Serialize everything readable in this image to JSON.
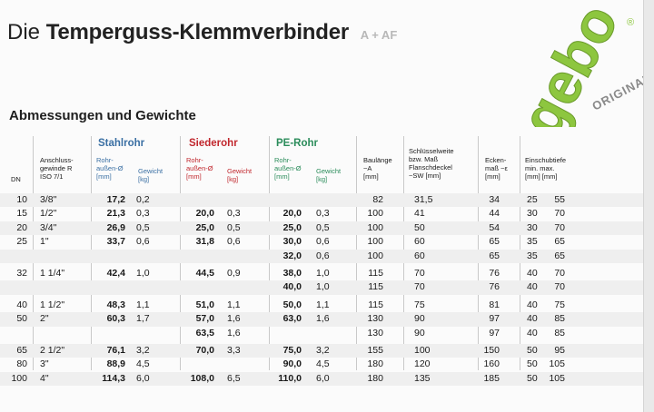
{
  "title": {
    "prefix": "Die",
    "main": "Temperguss-Klemmverbinder",
    "suffix": "A + AF"
  },
  "logo": {
    "brand": "gebo",
    "tagline": "ORIGINAL",
    "registered": "®",
    "color": "#8dc63f"
  },
  "subtitle": "Abmessungen und Gewichte",
  "colors": {
    "stahlrohr": "#3a6fa3",
    "siederohr": "#c1272d",
    "pe_rohr": "#2a8c5a"
  },
  "header": {
    "dn": "DN",
    "anschluss": "Anschluss-\ngewinde R\nISO 7/1",
    "groups": {
      "stahlrohr": "Stahlrohr",
      "siederohr": "Siederohr",
      "pe_rohr": "PE-Rohr"
    },
    "rohr": "Rohr-\naußen-Ø\n[mm]",
    "gewicht": "Gewicht\n[kg]",
    "baulaenge": "Baulänge\n~A\n[mm]",
    "schluessel": "Schlüsselweite\nbzw. Maß\nFlanschdeckel\n~SW [mm]",
    "ecken": "Ecken-\nmaß ~ε\n[mm]",
    "einschub": "Einschubtiefe\nmin.    max.\n[mm]   [mm]"
  },
  "rows": [
    {
      "dn": "10",
      "r": "3/8\"",
      "s_d": "17,2",
      "s_g": "0,2",
      "d_d": "",
      "d_g": "",
      "p_d": "",
      "p_g": "",
      "a": "82",
      "sw": "31,5",
      "e": "34",
      "min": "25",
      "max": "55",
      "shade": true
    },
    {
      "dn": "15",
      "r": "1/2\"",
      "s_d": "21,3",
      "s_g": "0,3",
      "d_d": "20,0",
      "d_g": "0,3",
      "p_d": "20,0",
      "p_g": "0,3",
      "a": "100",
      "sw": "41",
      "e": "44",
      "min": "30",
      "max": "70",
      "shade": false
    },
    {
      "dn": "20",
      "r": "3/4\"",
      "s_d": "26,9",
      "s_g": "0,5",
      "d_d": "25,0",
      "d_g": "0,5",
      "p_d": "25,0",
      "p_g": "0,5",
      "a": "100",
      "sw": "50",
      "e": "54",
      "min": "30",
      "max": "70",
      "shade": true
    },
    {
      "dn": "25",
      "r": "1\"",
      "s_d": "33,7",
      "s_g": "0,6",
      "d_d": "31,8",
      "d_g": "0,6",
      "p_d": "30,0",
      "p_g": "0,6",
      "a": "100",
      "sw": "60",
      "e": "65",
      "min": "35",
      "max": "65",
      "shade": false
    },
    {
      "dn": "",
      "r": "",
      "s_d": "",
      "s_g": "",
      "d_d": "",
      "d_g": "",
      "p_d": "32,0",
      "p_g": "0,6",
      "a": "100",
      "sw": "60",
      "e": "65",
      "min": "35",
      "max": "65",
      "shade": true
    },
    {
      "dn": "32",
      "r": "1 1/4\"",
      "s_d": "42,4",
      "s_g": "1,0",
      "d_d": "44,5",
      "d_g": "0,9",
      "p_d": "38,0",
      "p_g": "1,0",
      "a": "115",
      "sw": "70",
      "e": "76",
      "min": "40",
      "max": "70",
      "shade": false,
      "gap": true
    },
    {
      "dn": "",
      "r": "",
      "s_d": "",
      "s_g": "",
      "d_d": "",
      "d_g": "",
      "p_d": "40,0",
      "p_g": "1,0",
      "a": "115",
      "sw": "70",
      "e": "76",
      "min": "40",
      "max": "70",
      "shade": true
    },
    {
      "dn": "40",
      "r": "1 1/2\"",
      "s_d": "48,3",
      "s_g": "1,1",
      "d_d": "51,0",
      "d_g": "1,1",
      "p_d": "50,0",
      "p_g": "1,1",
      "a": "115",
      "sw": "75",
      "e": "81",
      "min": "40",
      "max": "75",
      "shade": false,
      "gap": true
    },
    {
      "dn": "50",
      "r": "2\"",
      "s_d": "60,3",
      "s_g": "1,7",
      "d_d": "57,0",
      "d_g": "1,6",
      "p_d": "63,0",
      "p_g": "1,6",
      "a": "130",
      "sw": "90",
      "e": "97",
      "min": "40",
      "max": "85",
      "shade": true
    },
    {
      "dn": "",
      "r": "",
      "s_d": "",
      "s_g": "",
      "d_d": "63,5",
      "d_g": "1,6",
      "p_d": "",
      "p_g": "",
      "a": "130",
      "sw": "90",
      "e": "97",
      "min": "40",
      "max": "85",
      "shade": false
    },
    {
      "dn": "65",
      "r": "2 1/2\"",
      "s_d": "76,1",
      "s_g": "3,2",
      "d_d": "70,0",
      "d_g": "3,3",
      "p_d": "75,0",
      "p_g": "3,2",
      "a": "155",
      "sw": "100",
      "e": "150",
      "min": "50",
      "max": "95",
      "shade": true,
      "gap": true
    },
    {
      "dn": "80",
      "r": "3\"",
      "s_d": "88,9",
      "s_g": "4,5",
      "d_d": "",
      "d_g": "",
      "p_d": "90,0",
      "p_g": "4,5",
      "a": "180",
      "sw": "120",
      "e": "160",
      "min": "50",
      "max": "105",
      "shade": false
    },
    {
      "dn": "100",
      "r": "4\"",
      "s_d": "114,3",
      "s_g": "6,0",
      "d_d": "108,0",
      "d_g": "6,5",
      "p_d": "110,0",
      "p_g": "6,0",
      "a": "180",
      "sw": "135",
      "e": "185",
      "min": "50",
      "max": "105",
      "shade": true
    }
  ]
}
